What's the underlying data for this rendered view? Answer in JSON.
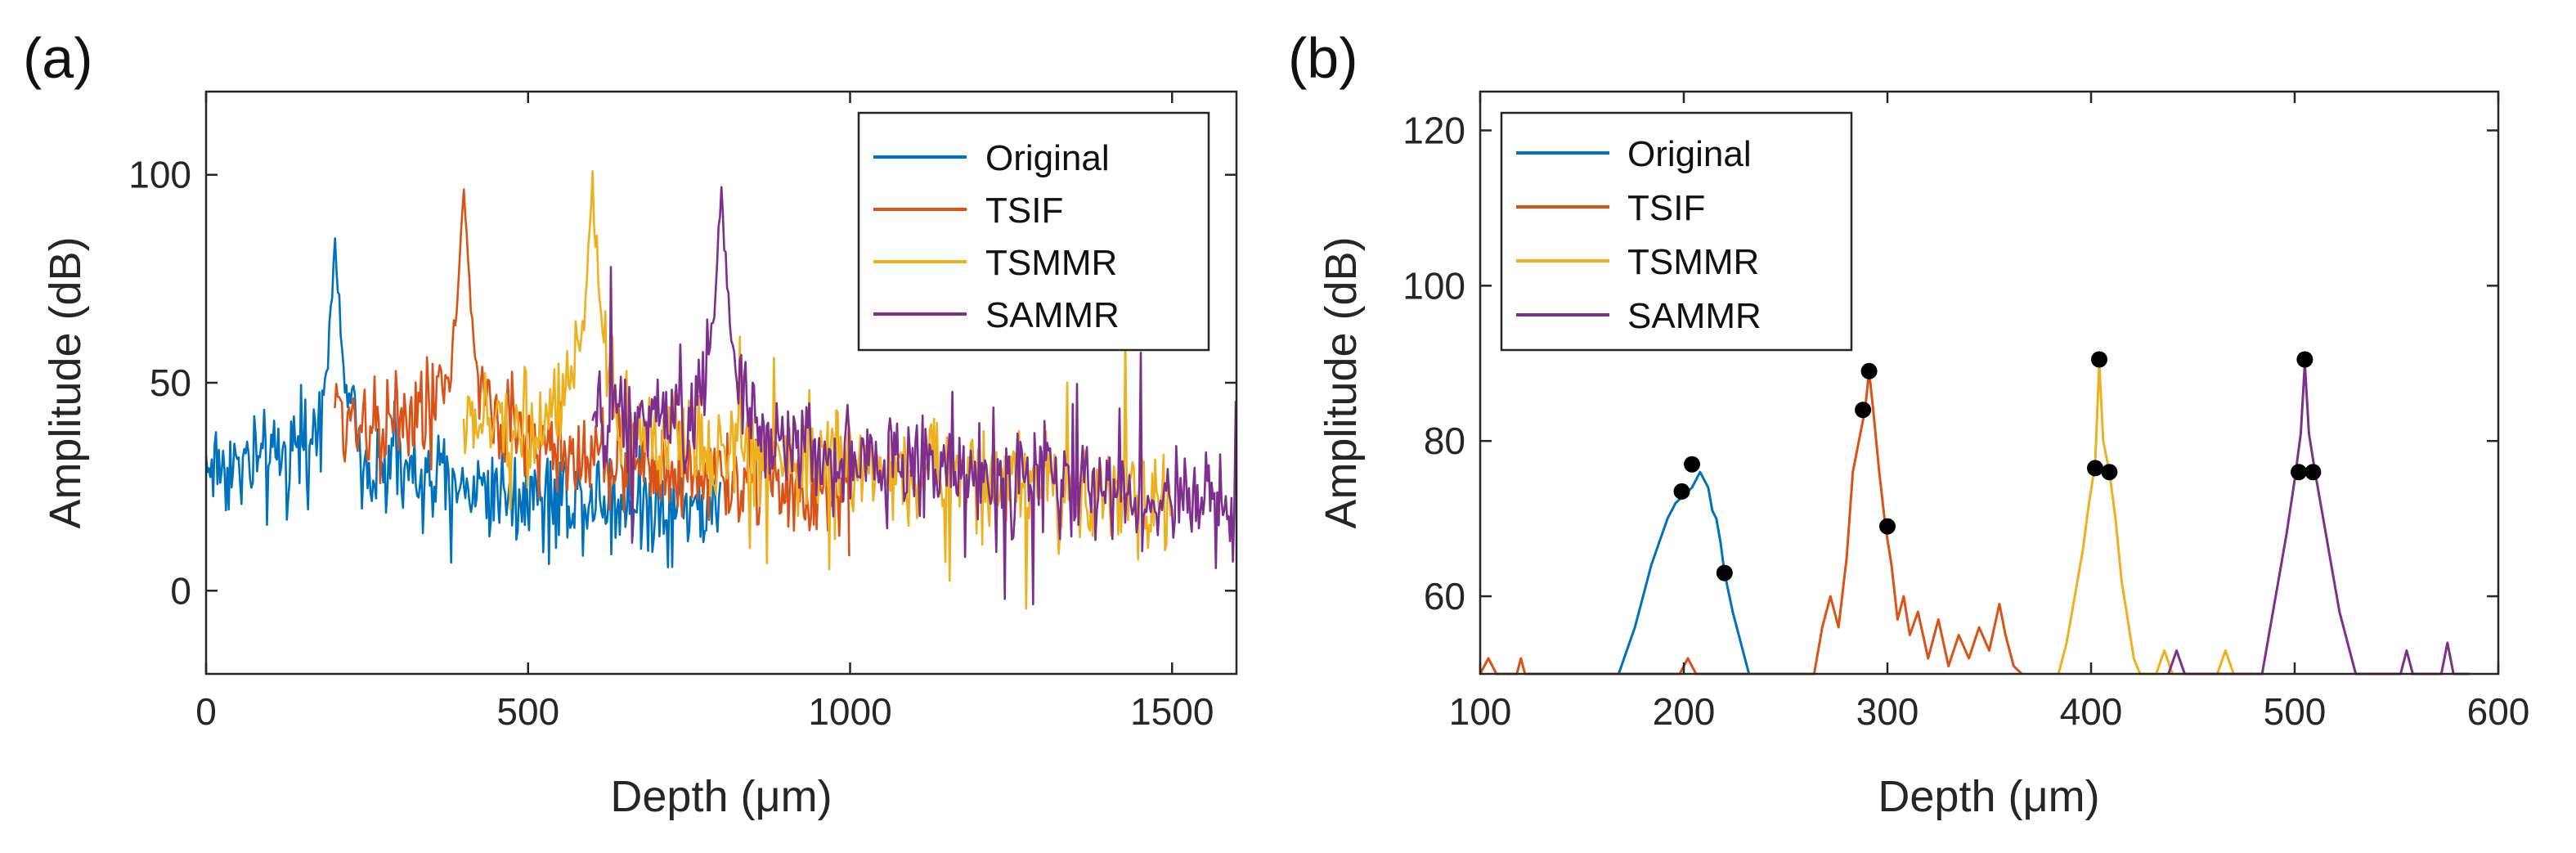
{
  "colors": {
    "Original": "#0072BD",
    "TSIF": "#D95319",
    "TSMMR": "#EDB120",
    "SAMMR": "#7E2F8E",
    "marker": "#000000"
  },
  "chart_data": [
    {
      "type": "line",
      "panel_label": "(a)",
      "xlabel": "Depth (μm)",
      "ylabel": "Amplitude (dB)",
      "xlim": [
        0,
        1600
      ],
      "ylim": [
        -20,
        120
      ],
      "xticks": [
        "0",
        "500",
        "1000",
        "1500"
      ],
      "xtick_values": [
        0,
        500,
        1000,
        1500
      ],
      "yticks": [
        "0",
        "50",
        "100"
      ],
      "ytick_values": [
        0,
        50,
        100
      ],
      "legend": [
        "Original",
        "TSIF",
        "TSMMR",
        "SAMMR"
      ],
      "legend_position": "top-right",
      "series": [
        {
          "name": "Original",
          "x_start": 0,
          "x_end": 800,
          "peak_x": 200,
          "peak_y": 76,
          "floor": 30,
          "floor_end": 20,
          "noise": 12
        },
        {
          "name": "TSIF",
          "x_start": 200,
          "x_end": 1000,
          "peak_x": 400,
          "peak_y": 88,
          "floor": 42,
          "floor_end": 22,
          "noise": 12
        },
        {
          "name": "TSMMR",
          "x_start": 400,
          "x_end": 1500,
          "peak_x": 600,
          "peak_y": 89,
          "floor": 40,
          "floor_end": 22,
          "noise": 12
        },
        {
          "name": "SAMMR",
          "x_start": 600,
          "x_end": 1600,
          "peak_x": 800,
          "peak_y": 89,
          "floor": 40,
          "floor_end": 20,
          "noise": 12
        }
      ]
    },
    {
      "type": "line",
      "panel_label": "(b)",
      "xlabel": "Depth (μm)",
      "ylabel": "Amplitude (dB)",
      "xlim": [
        100,
        600
      ],
      "ylim": [
        50,
        125
      ],
      "xticks": [
        "100",
        "200",
        "300",
        "400",
        "500",
        "600"
      ],
      "xtick_values": [
        100,
        200,
        300,
        400,
        500,
        600
      ],
      "yticks": [
        "60",
        "80",
        "100",
        "120"
      ],
      "ytick_values": [
        60,
        80,
        100,
        120
      ],
      "legend": [
        "Original",
        "TSIF",
        "TSMMR",
        "SAMMR"
      ],
      "legend_position": "top-left",
      "series": [
        {
          "name": "Original",
          "points": [
            [
              168,
              50
            ],
            [
              172,
              53
            ],
            [
              176,
              56
            ],
            [
              180,
              60
            ],
            [
              184,
              64
            ],
            [
              188,
              67
            ],
            [
              192,
              70
            ],
            [
              196,
              72
            ],
            [
              200,
              73
            ],
            [
              204,
              74
            ],
            [
              208,
              76
            ],
            [
              212,
              74
            ],
            [
              214,
              71
            ],
            [
              216,
              70
            ],
            [
              218,
              67
            ],
            [
              220,
              63
            ],
            [
              224,
              58
            ],
            [
              228,
              54
            ],
            [
              230,
              52
            ],
            [
              232,
              50
            ]
          ],
          "markers": [
            [
              199,
              73.5
            ],
            [
              204,
              77
            ],
            [
              220,
              63
            ]
          ]
        },
        {
          "name": "TSIF",
          "points": [
            [
              100,
              50
            ],
            [
              104,
              52
            ],
            [
              108,
              50
            ],
            [
              118,
              50
            ],
            [
              120,
              52
            ],
            [
              122,
              50
            ],
            [
              198,
              50
            ],
            [
              202,
              52
            ],
            [
              206,
              50
            ],
            [
              264,
              50
            ],
            [
              268,
              56
            ],
            [
              272,
              60
            ],
            [
              276,
              56
            ],
            [
              280,
              65
            ],
            [
              283,
              76
            ],
            [
              286,
              80
            ],
            [
              289,
              84
            ],
            [
              291,
              89
            ],
            [
              293,
              84
            ],
            [
              296,
              76
            ],
            [
              299,
              69
            ],
            [
              302,
              64
            ],
            [
              305,
              57
            ],
            [
              308,
              60
            ],
            [
              311,
              55
            ],
            [
              315,
              58
            ],
            [
              320,
              52
            ],
            [
              325,
              57
            ],
            [
              330,
              51
            ],
            [
              335,
              55
            ],
            [
              340,
              52
            ],
            [
              345,
              56
            ],
            [
              350,
              53
            ],
            [
              355,
              59
            ],
            [
              358,
              55
            ],
            [
              362,
              51
            ],
            [
              366,
              50
            ]
          ],
          "markers": [
            [
              288,
              84
            ],
            [
              291,
              89
            ],
            [
              300,
              69
            ]
          ]
        },
        {
          "name": "TSMMR",
          "points": [
            [
              384,
              50
            ],
            [
              388,
              54
            ],
            [
              392,
              60
            ],
            [
              396,
              66
            ],
            [
              399,
              72
            ],
            [
              402,
              77
            ],
            [
              404,
              90
            ],
            [
              406,
              80
            ],
            [
              409,
              76
            ],
            [
              412,
              70
            ],
            [
              415,
              62
            ],
            [
              418,
              57
            ],
            [
              421,
              52
            ],
            [
              424,
              50
            ],
            [
              432,
              50
            ],
            [
              436,
              53
            ],
            [
              440,
              50
            ],
            [
              462,
              50
            ],
            [
              466,
              53
            ],
            [
              470,
              50
            ]
          ],
          "markers": [
            [
              402,
              76.5
            ],
            [
              404,
              90.5
            ],
            [
              409,
              76
            ]
          ]
        },
        {
          "name": "SAMMR",
          "points": [
            [
              438,
              50
            ],
            [
              442,
              53
            ],
            [
              446,
              50
            ],
            [
              484,
              50
            ],
            [
              488,
              56
            ],
            [
              492,
              62
            ],
            [
              496,
              68
            ],
            [
              500,
              75
            ],
            [
              503,
              81
            ],
            [
              505,
              90
            ],
            [
              507,
              81
            ],
            [
              510,
              76
            ],
            [
              514,
              70
            ],
            [
              518,
              64
            ],
            [
              522,
              58
            ],
            [
              526,
              54
            ],
            [
              530,
              50
            ],
            [
              552,
              50
            ],
            [
              555,
              53
            ],
            [
              558,
              50
            ],
            [
              572,
              50
            ],
            [
              575,
              54
            ],
            [
              578,
              50
            ],
            [
              586,
              50
            ]
          ],
          "markers": [
            [
              502,
              76
            ],
            [
              505,
              90.5
            ],
            [
              509,
              76
            ]
          ]
        }
      ]
    }
  ]
}
